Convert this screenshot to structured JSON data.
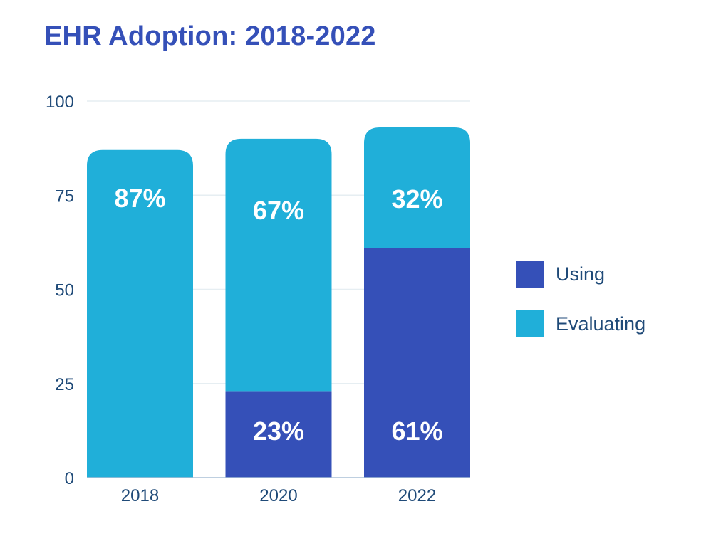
{
  "title": "EHR Adoption: 2018-2022",
  "colors": {
    "title": "#3550b8",
    "using": "#3550b8",
    "evaluating": "#20afd9",
    "axis_text": "#1f4a78",
    "grid": "#e6eef2",
    "value_label": "#ffffff"
  },
  "chart_data": {
    "type": "bar",
    "stacked": true,
    "title": "EHR Adoption: 2018-2022",
    "xlabel": "",
    "ylabel": "",
    "categories": [
      "2018",
      "2020",
      "2022"
    ],
    "series": [
      {
        "name": "Using",
        "values": [
          0,
          23,
          61
        ],
        "labels": [
          "",
          "23%",
          "61%"
        ]
      },
      {
        "name": "Evaluating",
        "values": [
          87,
          67,
          32
        ],
        "labels": [
          "87%",
          "67%",
          "32%"
        ]
      }
    ],
    "ylim": [
      0,
      100
    ],
    "yticks": [
      0,
      25,
      50,
      75,
      100
    ],
    "grid": true,
    "legend": {
      "position": "right",
      "entries": [
        "Using",
        "Evaluating"
      ]
    }
  }
}
